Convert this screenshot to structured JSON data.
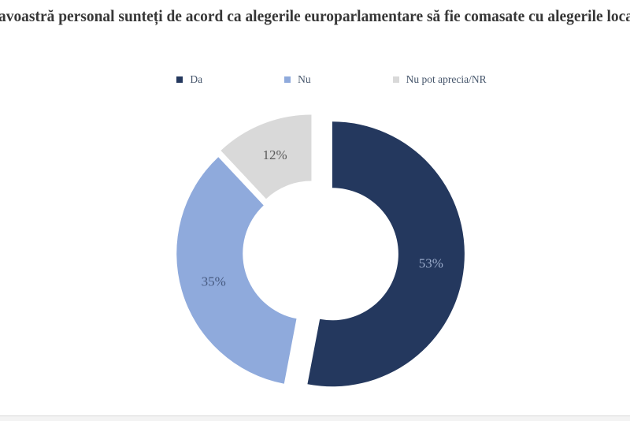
{
  "title": {
    "text": "avoastră personal sunteți de acord ca alegerile europarlamentare să fie comasate cu alegerile loca"
  },
  "legend": {
    "items": [
      {
        "label": "Da",
        "color": "#24385E"
      },
      {
        "label": "Nu",
        "color": "#8FAADC"
      },
      {
        "label": "Nu pot aprecia/NR",
        "color": "#D9D9D9"
      }
    ]
  },
  "chart_data": {
    "type": "pie",
    "subtype": "exploded-donut",
    "title": "avoastră personal sunteți de acord ca alegerile europarlamentare să fie comasate cu alegerile loca",
    "categories": [
      "Da",
      "Nu",
      "Nu pot aprecia/NR"
    ],
    "values": [
      53,
      35,
      12
    ],
    "data_labels": [
      "53%",
      "35%",
      "12%"
    ],
    "colors": [
      "#24385E",
      "#8FAADC",
      "#D9D9D9"
    ],
    "label_colors": [
      "#9BACCB",
      "#46597F",
      "#5A5A5A"
    ],
    "legend_position": "top",
    "hole_ratio": 0.5,
    "start_angle_deg": 0,
    "direction": "clockwise"
  }
}
